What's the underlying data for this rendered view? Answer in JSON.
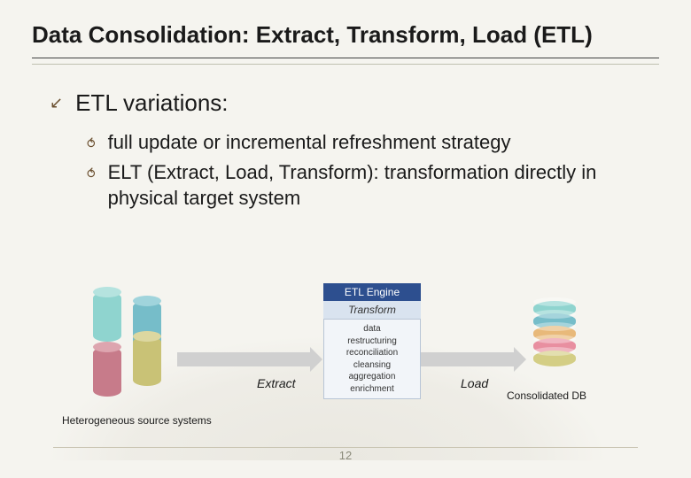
{
  "slide": {
    "title": "Data Consolidation: Extract, Transform, Load (ETL)",
    "heading": "ETL variations:",
    "bullets": [
      "full update or incremental refreshment strategy",
      "ELT (Extract, Load, Transform): transformation directly in physical target system"
    ],
    "page_number": "12"
  },
  "diagram": {
    "source_label": "Heterogeneous source systems",
    "target_label": "Consolidated DB",
    "extract_label": "Extract",
    "load_label": "Load",
    "engine": {
      "header": "ETL Engine",
      "transform": "Transform",
      "steps": [
        "data",
        "restructuring",
        "reconciliation",
        "cleansing",
        "aggregation",
        "enrichment"
      ]
    },
    "source_cylinders": [
      {
        "color": "#8fd4cf"
      },
      {
        "color": "#76bdc9"
      },
      {
        "color": "#c77b8a"
      },
      {
        "color": "#c9c276"
      }
    ],
    "target_discs": [
      "#8fd4cf",
      "#76bdc9",
      "#e8b97a",
      "#e88fa0",
      "#d4ce85"
    ],
    "arrow_color": "#d0d0d0",
    "background_color": "#f5f4ef",
    "fonts": {
      "title_size": 26,
      "heading_size": 26,
      "body_size": 22,
      "diagram_label_size": 12,
      "engine_step_size": 10
    }
  }
}
